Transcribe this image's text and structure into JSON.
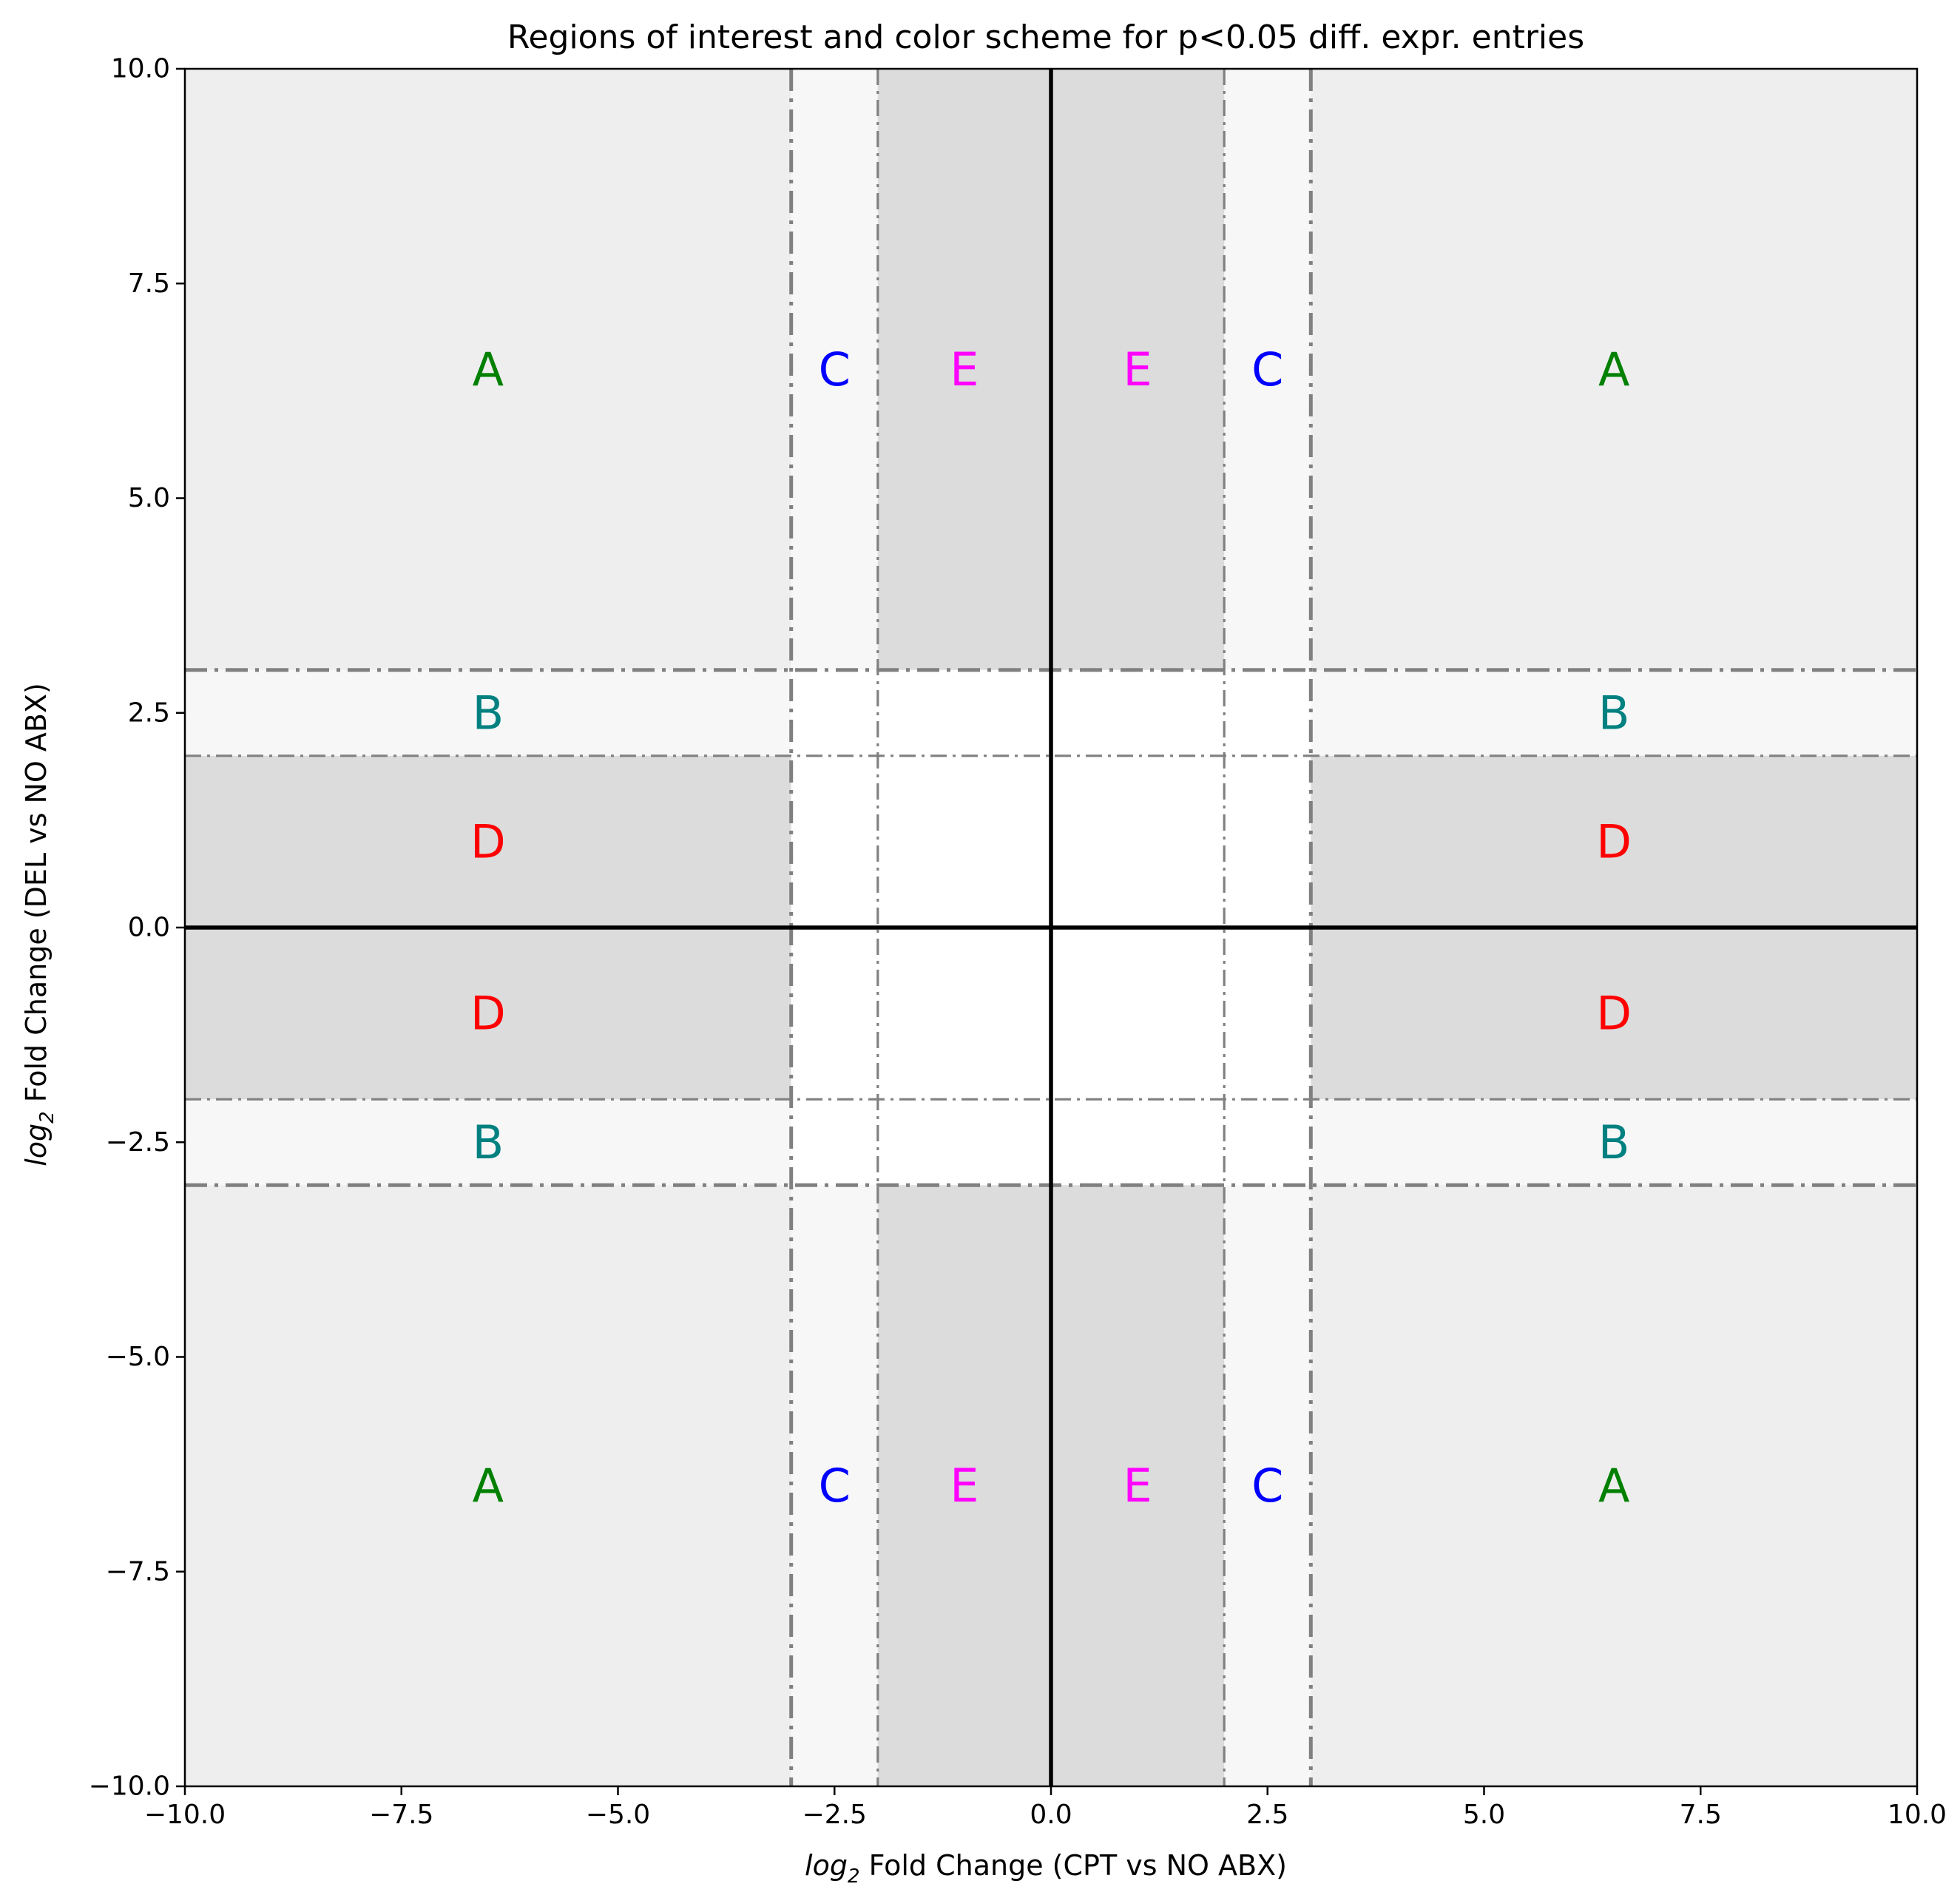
{
  "chart_data": {
    "type": "scatter",
    "title": "Regions of interest and color scheme for p<0.05 diff. expr. entries",
    "xlabel_prefix": "log",
    "xlabel_sub": "2",
    "xlabel_rest": " Fold Change (CPT vs NO ABX)",
    "ylabel_prefix": "log",
    "ylabel_sub": "2",
    "ylabel_rest": " Fold Change (DEL vs NO ABX)",
    "xlim": [
      -10,
      10
    ],
    "ylim": [
      -10,
      10
    ],
    "xticks": [
      -10,
      -7.5,
      -5,
      -2.5,
      0,
      2.5,
      5,
      7.5,
      10
    ],
    "xtick_labels": [
      "−10.0",
      "−7.5",
      "−5.0",
      "−2.5",
      "0.0",
      "2.5",
      "5.0",
      "7.5",
      "10.0"
    ],
    "yticks": [
      -10,
      -7.5,
      -5,
      -2.5,
      0,
      2.5,
      5,
      7.5,
      10
    ],
    "ytick_labels": [
      "−10.0",
      "−7.5",
      "−5.0",
      "−2.5",
      "0.0",
      "2.5",
      "5.0",
      "7.5",
      "10.0"
    ],
    "grid": false,
    "colors": {
      "A": "#008000",
      "B": "#008080",
      "C": "#0000ff",
      "D": "#ff0000",
      "E": "#ff00ff",
      "shade_light": "#eeeeee",
      "shade_lighter": "#f7f7f7",
      "shade_dark": "#dcdcdc",
      "threshold_line": "#808080",
      "axis_line": "#000000"
    },
    "shaded_regions": [
      {
        "x": [
          -10,
          -3
        ],
        "y": [
          3,
          10
        ],
        "shade": "shade_light"
      },
      {
        "x": [
          3,
          10
        ],
        "y": [
          3,
          10
        ],
        "shade": "shade_light"
      },
      {
        "x": [
          -10,
          -3
        ],
        "y": [
          -10,
          -3
        ],
        "shade": "shade_light"
      },
      {
        "x": [
          3,
          10
        ],
        "y": [
          -10,
          -3
        ],
        "shade": "shade_light"
      },
      {
        "x": [
          -10,
          -3
        ],
        "y": [
          2,
          3
        ],
        "shade": "shade_lighter"
      },
      {
        "x": [
          3,
          10
        ],
        "y": [
          2,
          3
        ],
        "shade": "shade_lighter"
      },
      {
        "x": [
          -10,
          -3
        ],
        "y": [
          -3,
          -2
        ],
        "shade": "shade_lighter"
      },
      {
        "x": [
          3,
          10
        ],
        "y": [
          -3,
          -2
        ],
        "shade": "shade_lighter"
      },
      {
        "x": [
          -3,
          -2
        ],
        "y": [
          3,
          10
        ],
        "shade": "shade_lighter"
      },
      {
        "x": [
          2,
          3
        ],
        "y": [
          3,
          10
        ],
        "shade": "shade_lighter"
      },
      {
        "x": [
          -3,
          -2
        ],
        "y": [
          -10,
          -3
        ],
        "shade": "shade_lighter"
      },
      {
        "x": [
          2,
          3
        ],
        "y": [
          -10,
          -3
        ],
        "shade": "shade_lighter"
      },
      {
        "x": [
          -10,
          -3
        ],
        "y": [
          -2,
          2
        ],
        "shade": "shade_dark"
      },
      {
        "x": [
          3,
          10
        ],
        "y": [
          -2,
          2
        ],
        "shade": "shade_dark"
      },
      {
        "x": [
          -2,
          2
        ],
        "y": [
          3,
          10
        ],
        "shade": "shade_dark"
      },
      {
        "x": [
          -2,
          2
        ],
        "y": [
          -10,
          -3
        ],
        "shade": "shade_dark"
      }
    ],
    "threshold_lines": [
      {
        "orientation": "horizontal",
        "value": 3,
        "weight": "thick"
      },
      {
        "orientation": "horizontal",
        "value": -3,
        "weight": "thick"
      },
      {
        "orientation": "horizontal",
        "value": 2,
        "weight": "thin"
      },
      {
        "orientation": "horizontal",
        "value": -2,
        "weight": "thin"
      },
      {
        "orientation": "vertical",
        "value": -3,
        "weight": "thick"
      },
      {
        "orientation": "vertical",
        "value": 3,
        "weight": "thick"
      },
      {
        "orientation": "vertical",
        "value": -2,
        "weight": "thin"
      },
      {
        "orientation": "vertical",
        "value": 2,
        "weight": "thin"
      }
    ],
    "region_labels": [
      {
        "text": "A",
        "x": -6.5,
        "y": 6.5,
        "color_key": "A"
      },
      {
        "text": "A",
        "x": 6.5,
        "y": 6.5,
        "color_key": "A"
      },
      {
        "text": "A",
        "x": -6.5,
        "y": -6.5,
        "color_key": "A"
      },
      {
        "text": "A",
        "x": 6.5,
        "y": -6.5,
        "color_key": "A"
      },
      {
        "text": "B",
        "x": -6.5,
        "y": 2.5,
        "color_key": "B"
      },
      {
        "text": "B",
        "x": 6.5,
        "y": 2.5,
        "color_key": "B"
      },
      {
        "text": "B",
        "x": -6.5,
        "y": -2.5,
        "color_key": "B"
      },
      {
        "text": "B",
        "x": 6.5,
        "y": -2.5,
        "color_key": "B"
      },
      {
        "text": "C",
        "x": -2.5,
        "y": 6.5,
        "color_key": "C"
      },
      {
        "text": "C",
        "x": 2.5,
        "y": 6.5,
        "color_key": "C"
      },
      {
        "text": "C",
        "x": -2.5,
        "y": -6.5,
        "color_key": "C"
      },
      {
        "text": "C",
        "x": 2.5,
        "y": -6.5,
        "color_key": "C"
      },
      {
        "text": "D",
        "x": -6.5,
        "y": 1,
        "color_key": "D"
      },
      {
        "text": "D",
        "x": 6.5,
        "y": 1,
        "color_key": "D"
      },
      {
        "text": "D",
        "x": -6.5,
        "y": -1,
        "color_key": "D"
      },
      {
        "text": "D",
        "x": 6.5,
        "y": -1,
        "color_key": "D"
      },
      {
        "text": "E",
        "x": -1,
        "y": 6.5,
        "color_key": "E"
      },
      {
        "text": "E",
        "x": 1,
        "y": 6.5,
        "color_key": "E"
      },
      {
        "text": "E",
        "x": -1,
        "y": -6.5,
        "color_key": "E"
      },
      {
        "text": "E",
        "x": 1,
        "y": -6.5,
        "color_key": "E"
      }
    ]
  }
}
